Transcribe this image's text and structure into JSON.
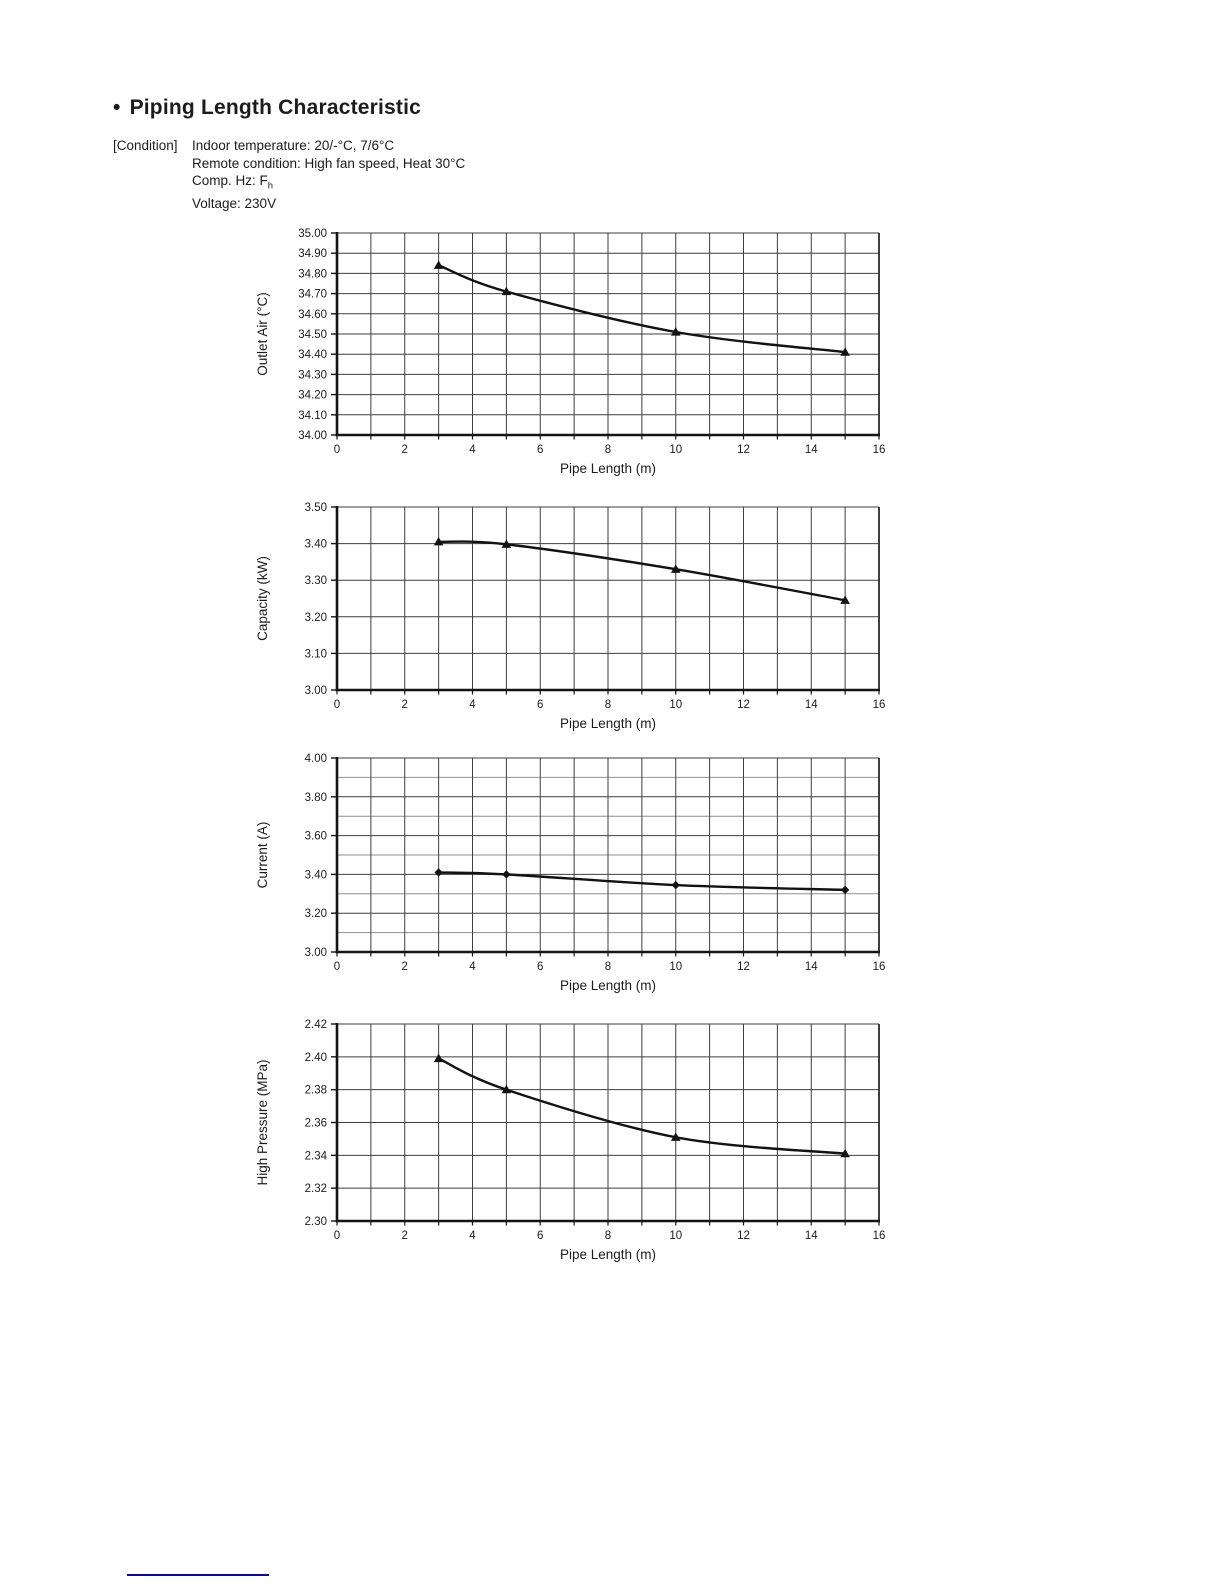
{
  "header": {
    "bullet": "•",
    "title": "Piping Length Characteristic"
  },
  "conditions": {
    "label": "[Condition]",
    "line1": "Indoor temperature: 20/-°C, 7/6°C",
    "line2": "Remote condition: High fan speed, Heat 30°C",
    "line3_prefix": "Comp. Hz: F",
    "line3_sub": "h",
    "line4": "Voltage: 230V"
  },
  "palette": {
    "grid_major": "#3f3f3f",
    "grid_minor": "#8f8f8f",
    "axis": "#141414",
    "plot_edge": "#2a2a2a",
    "line": "#121212",
    "text": "#1c1c1c",
    "footer_rule": "#0b0b8f"
  },
  "chart_data": [
    {
      "type": "line",
      "title": "Outlet Air vs Pipe Length",
      "ylabel": "Outlet Air (°C)",
      "xlabel": "Pipe Length (m)",
      "x": [
        3,
        5,
        10,
        15
      ],
      "y": [
        34.84,
        34.71,
        34.51,
        34.41
      ],
      "xlim": [
        0,
        16
      ],
      "ylim": [
        34.0,
        35.0
      ],
      "x_grid_step": 1,
      "x_label_step": 2,
      "y_grid_step": 0.1,
      "y_label_step": 0.1,
      "y_decimals": 2,
      "marker": "triangle",
      "grid": true,
      "legend": false
    },
    {
      "type": "line",
      "title": "Capacity vs Pipe Length",
      "ylabel": "Capacity (kW)",
      "xlabel": "Pipe Length (m)",
      "x": [
        3,
        5,
        10,
        15
      ],
      "y": [
        3.405,
        3.398,
        3.33,
        3.245
      ],
      "xlim": [
        0,
        16
      ],
      "ylim": [
        3.0,
        3.5
      ],
      "x_grid_step": 1,
      "x_label_step": 2,
      "y_grid_step": 0.1,
      "y_label_step": 0.1,
      "y_decimals": 2,
      "marker": "triangle",
      "grid": true,
      "legend": false
    },
    {
      "type": "line",
      "title": "Current vs Pipe Length",
      "ylabel": "Current (A)",
      "xlabel": "Pipe Length (m)",
      "x": [
        3,
        5,
        10,
        15
      ],
      "y": [
        3.41,
        3.4,
        3.345,
        3.32
      ],
      "xlim": [
        0,
        16
      ],
      "ylim": [
        3.0,
        4.0
      ],
      "x_grid_step": 1,
      "x_label_step": 2,
      "y_grid_step": 0.1,
      "y_label_step": 0.2,
      "y_decimals": 2,
      "marker": "diamond",
      "grid": true,
      "legend": false
    },
    {
      "type": "line",
      "title": "High Pressure vs Pipe Length",
      "ylabel": "High Pressure (MPa)",
      "xlabel": "Pipe Length (m)",
      "x": [
        3,
        5,
        10,
        15
      ],
      "y": [
        2.399,
        2.38,
        2.351,
        2.341
      ],
      "xlim": [
        0,
        16
      ],
      "ylim": [
        2.3,
        2.42
      ],
      "x_grid_step": 1,
      "x_label_step": 2,
      "y_grid_step": 0.02,
      "y_label_step": 0.02,
      "y_decimals": 2,
      "marker": "triangle",
      "grid": true,
      "legend": false
    }
  ]
}
